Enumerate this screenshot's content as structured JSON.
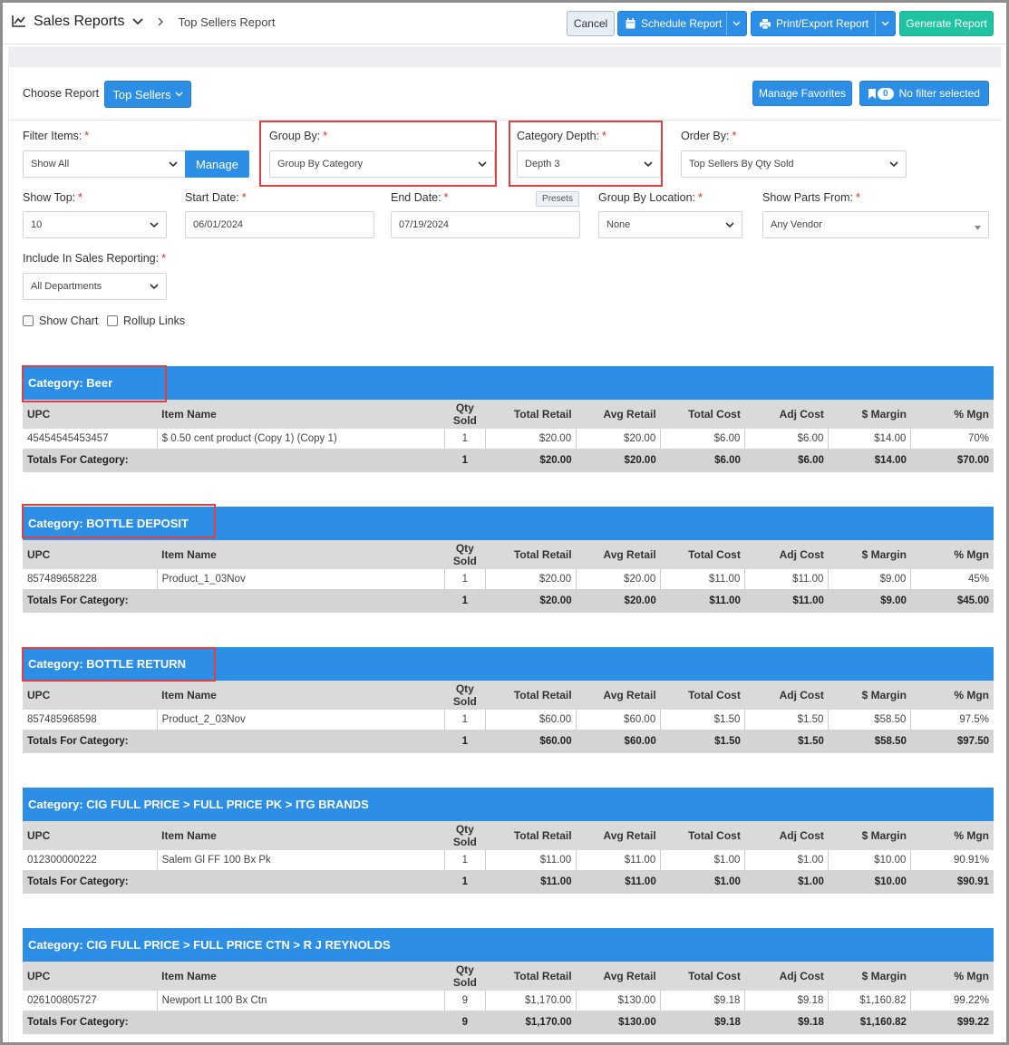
{
  "header": {
    "title": "Sales Reports",
    "breadcrumb_current": "Top Sellers Report",
    "cancel_label": "Cancel",
    "schedule_label": "Schedule Report",
    "print_label": "Print/Export Report",
    "generate_label": "Generate Report"
  },
  "toolbar": {
    "choose_report_label": "Choose Report",
    "report_select_value": "Top Sellers",
    "manage_favorites_label": "Manage Favorites",
    "filter_count": "0",
    "no_filter_label": "No filter selected"
  },
  "filters": {
    "filter_items": {
      "label": "Filter Items:",
      "value": "Show All",
      "manage_label": "Manage"
    },
    "group_by": {
      "label": "Group By:",
      "value": "Group By Category"
    },
    "category_depth": {
      "label": "Category Depth:",
      "value": "Depth 3"
    },
    "order_by": {
      "label": "Order By:",
      "value": "Top Sellers By Qty Sold"
    },
    "show_top": {
      "label": "Show Top:",
      "value": "10"
    },
    "start_date": {
      "label": "Start Date:",
      "value": "06/01/2024"
    },
    "end_date": {
      "label": "End Date:",
      "value": "07/19/2024",
      "presets_label": "Presets"
    },
    "group_by_location": {
      "label": "Group By Location:",
      "value": "None"
    },
    "show_parts_from": {
      "label": "Show Parts From:",
      "value": "Any Vendor"
    },
    "include_in_sales": {
      "label": "Include In Sales Reporting:",
      "value": "All Departments"
    },
    "show_chart_label": "Show Chart",
    "rollup_links_label": "Rollup Links",
    "required_mark": "*"
  },
  "columns": [
    "UPC",
    "Item Name",
    "Qty Sold",
    "Total Retail",
    "Avg Retail",
    "Total Cost",
    "Adj Cost",
    "$ Margin",
    "% Mgn"
  ],
  "totals_label": "Totals For Category:",
  "categories": [
    {
      "title": "Category: Beer",
      "row": [
        "45454545453457",
        "$ 0.50 cent product (Copy 1) (Copy 1)",
        "1",
        "$20.00",
        "$20.00",
        "$6.00",
        "$6.00",
        "$14.00",
        "70%"
      ],
      "totals": [
        "1",
        "$20.00",
        "$20.00",
        "$6.00",
        "$6.00",
        "$14.00",
        "$70.00"
      ]
    },
    {
      "title": "Category: BOTTLE DEPOSIT",
      "row": [
        "857489658228",
        "Product_1_03Nov",
        "1",
        "$20.00",
        "$20.00",
        "$11.00",
        "$11.00",
        "$9.00",
        "45%"
      ],
      "totals": [
        "1",
        "$20.00",
        "$20.00",
        "$11.00",
        "$11.00",
        "$9.00",
        "$45.00"
      ]
    },
    {
      "title": "Category: BOTTLE RETURN",
      "row": [
        "857485968598",
        "Product_2_03Nov",
        "1",
        "$60.00",
        "$60.00",
        "$1.50",
        "$1.50",
        "$58.50",
        "97.5%"
      ],
      "totals": [
        "1",
        "$60.00",
        "$60.00",
        "$1.50",
        "$1.50",
        "$58.50",
        "$97.50"
      ]
    },
    {
      "title": "Category: CIG FULL PRICE > FULL PRICE PK > ITG BRANDS",
      "row": [
        "012300000222",
        "Salem Gl FF 100 Bx Pk",
        "1",
        "$11.00",
        "$11.00",
        "$1.00",
        "$1.00",
        "$10.00",
        "90.91%"
      ],
      "totals": [
        "1",
        "$11.00",
        "$11.00",
        "$1.00",
        "$1.00",
        "$10.00",
        "$90.91"
      ]
    },
    {
      "title": "Category: CIG FULL PRICE > FULL PRICE CTN > R J REYNOLDS",
      "row": [
        "026100805727",
        "Newport Lt 100 Bx Ctn",
        "9",
        "$1,170.00",
        "$130.00",
        "$9.18",
        "$9.18",
        "$1,160.82",
        "99.22%"
      ],
      "totals": [
        "9",
        "$1,170.00",
        "$130.00",
        "$9.18",
        "$9.18",
        "$1,160.82",
        "$99.22"
      ]
    }
  ],
  "icons": {
    "chart": "line-chart-icon",
    "calendar": "calendar-icon",
    "print": "printer-icon",
    "bookmark": "bookmark-icon"
  },
  "colors": {
    "primary": "#2d8ee6",
    "success": "#20c3a0",
    "highlight": "#e0403f",
    "required": "#d93025"
  }
}
